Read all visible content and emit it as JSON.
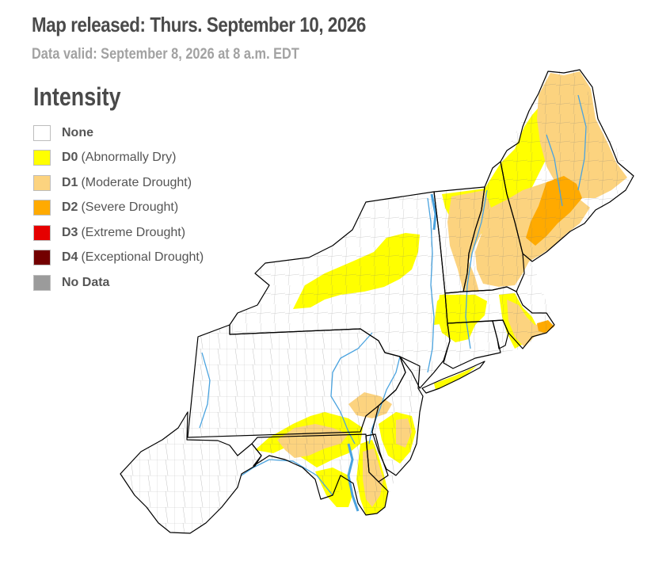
{
  "header": {
    "title": "Map released: Thurs. September 10, 2026",
    "subtitle": "Data valid: September 8, 2026 at 8 a.m. EDT"
  },
  "legend": {
    "title": "Intensity",
    "items": [
      {
        "code": "None",
        "desc": "",
        "color": "#ffffff"
      },
      {
        "code": "D0",
        "desc": "(Abnormally Dry)",
        "color": "#ffff00"
      },
      {
        "code": "D1",
        "desc": "(Moderate Drought)",
        "color": "#fcd37f"
      },
      {
        "code": "D2",
        "desc": "(Severe Drought)",
        "color": "#ffaa00"
      },
      {
        "code": "D3",
        "desc": "(Extreme Drought)",
        "color": "#e60000"
      },
      {
        "code": "D4",
        "desc": "(Exceptional Drought)",
        "color": "#730000"
      },
      {
        "code": "No Data",
        "desc": "",
        "color": "#9b9b9b"
      }
    ]
  },
  "map": {
    "region": "Northeast",
    "colors": {
      "none": "#ffffff",
      "d0": "#ffff00",
      "d1": "#fcd37f",
      "d2": "#ffaa00",
      "state_border": "#000000",
      "county_border": "#555555",
      "water": "#4aa3df"
    }
  }
}
